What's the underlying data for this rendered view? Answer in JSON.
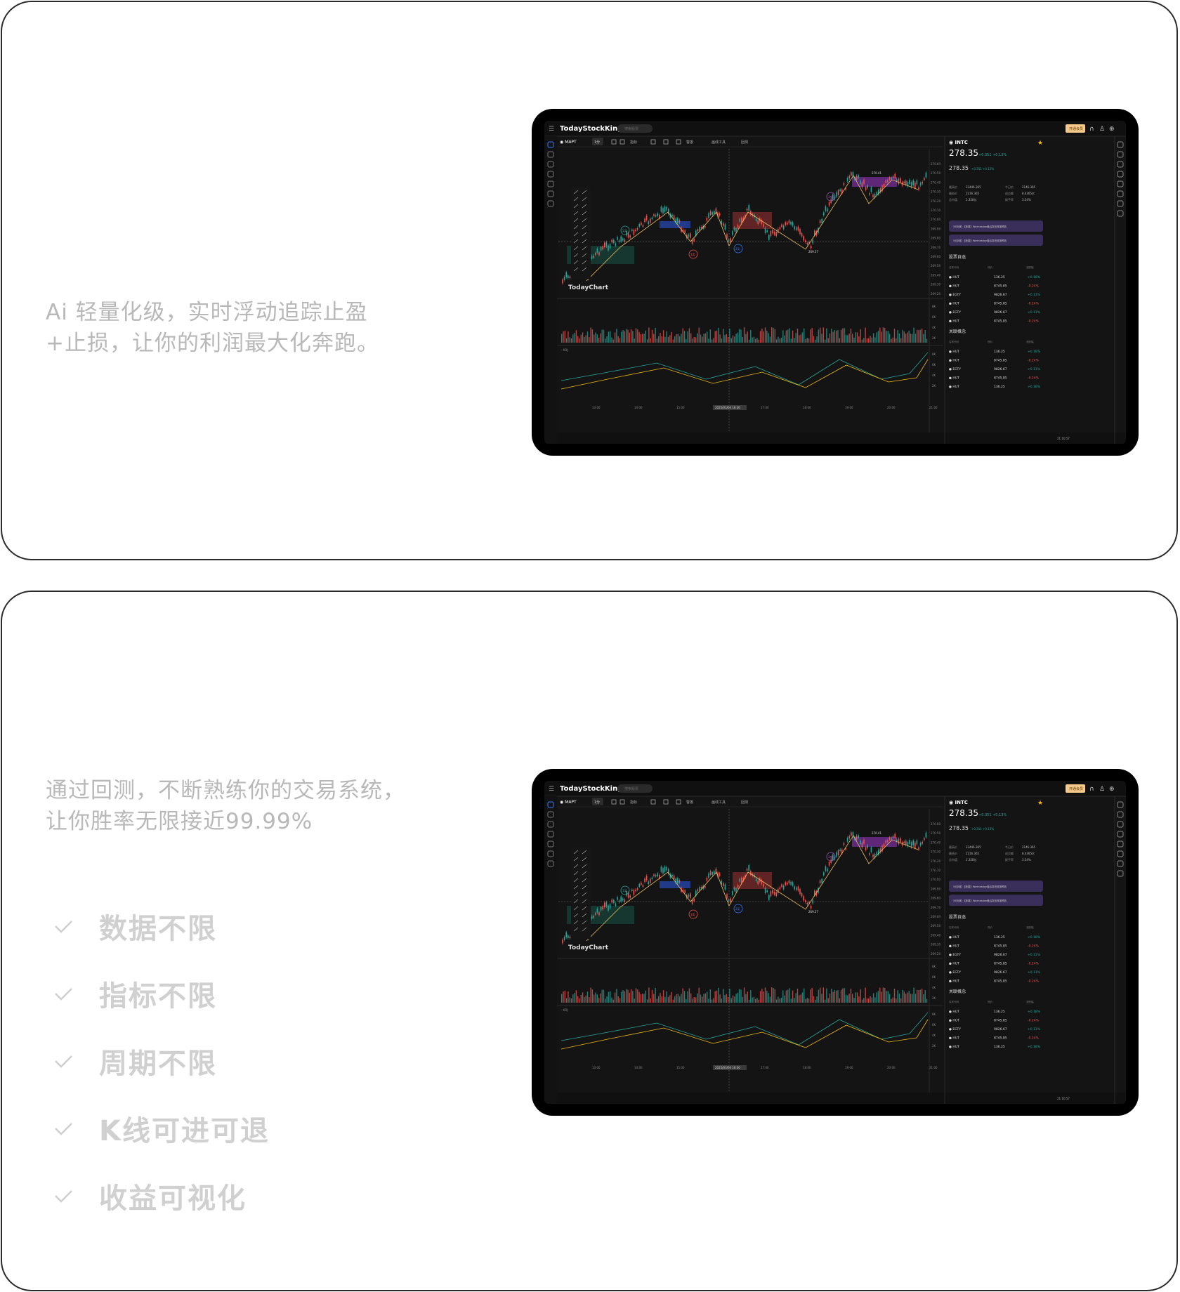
{
  "sections": [
    {
      "description_lines": [
        "Ai 轻量化级，实时浮动追踪止盈",
        "+止损，让你的利润最大化奔跑。"
      ]
    },
    {
      "description_lines": [
        "通过回测，不断熟练你的交易系统，",
        "让你胜率无限接近99.99%"
      ],
      "features": [
        "数据不限",
        "指标不限",
        "周期不限",
        "K线可进可退",
        "收益可视化"
      ]
    }
  ],
  "app": {
    "logo": "TodayStockKing",
    "search_placeholder": "搜索股票",
    "action_button": "开通会员",
    "symbol": "MAPT",
    "period": "1分",
    "toolbar": [
      "指标",
      "警报",
      "画线工具",
      "回测"
    ],
    "chart_watermark": "TodayChart",
    "zigzag_labels": [
      "1买",
      "1卖",
      "2买",
      "3卖"
    ],
    "price_marks": [
      "270.41",
      "269.57"
    ],
    "y_axis": [
      "270.60",
      "270.50",
      "270.40",
      "270.30",
      "270.20",
      "270.10",
      "270.00",
      "269.90",
      "269.80",
      "269.70",
      "269.60",
      "269.50",
      "269.40",
      "269.30",
      "269.20"
    ],
    "volume_axis": [
      "8K",
      "6K",
      "4K",
      "2K"
    ],
    "time_axis": [
      "13:00",
      "14:00",
      "15:00",
      "16:00",
      "17:00",
      "18:00",
      "19:00",
      "20:00",
      "21:00"
    ],
    "crosshair_time": "2025/03/04 16:30",
    "subpanel_label": "KDJ",
    "status_time": "21:10:57",
    "quote": {
      "ticker": "INTC",
      "price": "278.35",
      "change": "+0.351",
      "change_pct": "+0.13%",
      "after_price": "278.35",
      "after_change": "+0.351",
      "after_pct": "+0.13%",
      "stats": [
        [
          "最高价",
          "23446.365",
          "今日价",
          "2146.365"
        ],
        [
          "最低价",
          "2216.365",
          "成交额",
          "8.4365亿"
        ],
        [
          "总市值",
          "1.358亿",
          "换手率",
          "3.54%"
        ]
      ]
    },
    "news": [
      "5分钟前 【新闻】Wednesday盘后发布财报预告",
      "5分钟前 【新闻】Wednesday盘后发布财报预告"
    ],
    "watch_title": "股票自选",
    "related_title": "关联概念",
    "columns": [
      "名称代码",
      "现价",
      "涨跌幅"
    ],
    "watch_rows": [
      [
        "HUT",
        "136.25",
        "+0.18%"
      ],
      [
        "HUT",
        "8745.85",
        "-0.24%"
      ],
      [
        "EGTY",
        "9826.67",
        "+0.11%"
      ],
      [
        "HUT",
        "8745.85",
        "-0.24%"
      ],
      [
        "EGTY",
        "9826.67",
        "+0.11%"
      ],
      [
        "HUT",
        "8745.85",
        "-0.24%"
      ]
    ],
    "related_rows": [
      [
        "HUT",
        "136.25",
        "+0.18%"
      ],
      [
        "HUT",
        "8745.85",
        "-0.24%"
      ],
      [
        "EGTY",
        "9826.67",
        "+0.11%"
      ],
      [
        "HUT",
        "8745.85",
        "-0.24%"
      ],
      [
        "HUT",
        "136.25",
        "+0.18%"
      ]
    ]
  },
  "colors": {
    "up": "#26a69a",
    "down": "#ef5350",
    "accent": "#f0b90b",
    "panel": "#141414"
  }
}
